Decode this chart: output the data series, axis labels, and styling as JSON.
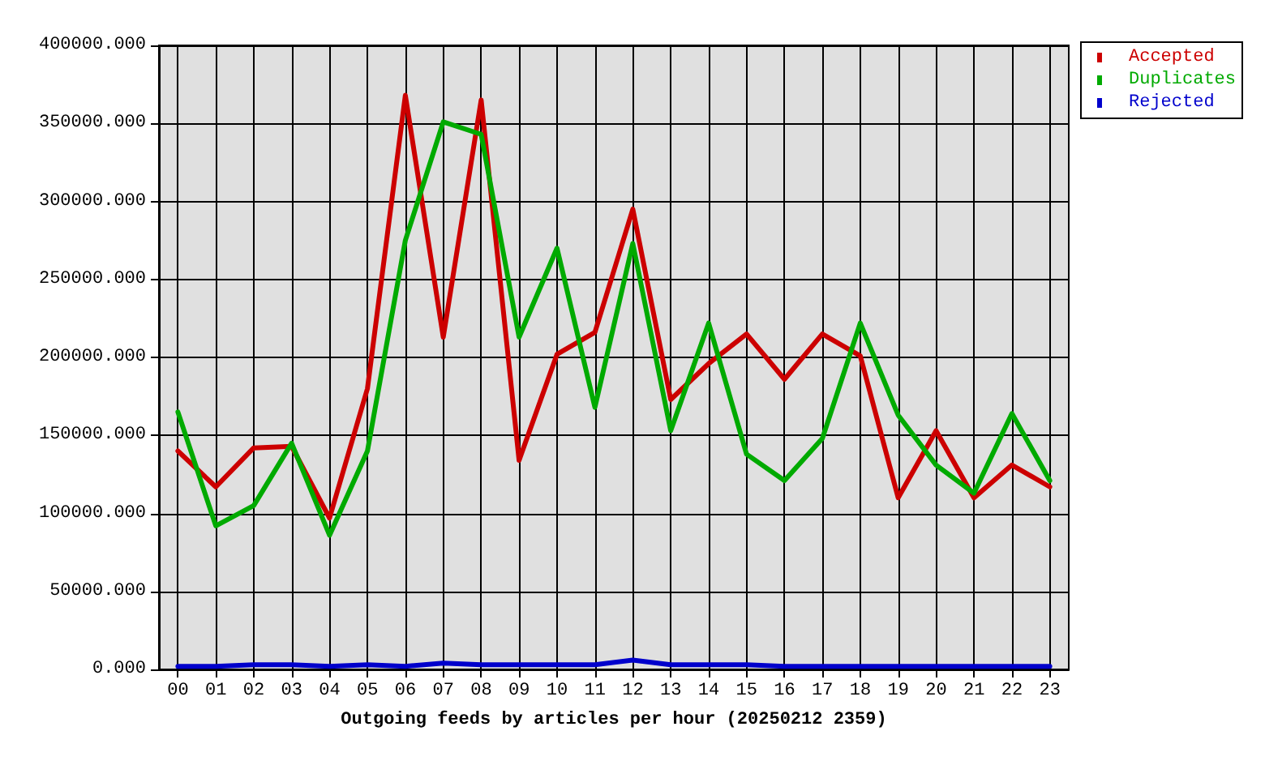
{
  "chart_data": {
    "type": "line",
    "xlabel": "Outgoing feeds by articles per hour (20250212 2359)",
    "categories": [
      "00",
      "01",
      "02",
      "03",
      "04",
      "05",
      "06",
      "07",
      "08",
      "09",
      "10",
      "11",
      "12",
      "13",
      "14",
      "15",
      "16",
      "17",
      "18",
      "19",
      "20",
      "21",
      "22",
      "23"
    ],
    "series": [
      {
        "name": "Accepted",
        "color": "#cc0000",
        "values": [
          140000,
          117000,
          142000,
          143000,
          97000,
          180000,
          368000,
          213000,
          365000,
          134000,
          202000,
          216000,
          295000,
          173000,
          196000,
          215000,
          186000,
          215000,
          201000,
          110000,
          153000,
          110000,
          131000,
          117000
        ]
      },
      {
        "name": "Duplicates",
        "color": "#00aa00",
        "values": [
          165000,
          92000,
          105000,
          145000,
          86000,
          140000,
          275000,
          351000,
          343000,
          213000,
          270000,
          168000,
          273000,
          153000,
          222000,
          138000,
          121000,
          148000,
          222000,
          163000,
          131000,
          113000,
          164000,
          121000
        ]
      },
      {
        "name": "Rejected",
        "color": "#0000cc",
        "values": [
          2000,
          2000,
          3000,
          3000,
          2000,
          3000,
          2000,
          4000,
          3000,
          3000,
          3000,
          3000,
          6000,
          3000,
          3000,
          3000,
          2000,
          2000,
          2000,
          2000,
          2000,
          2000,
          2000,
          2000
        ]
      }
    ],
    "ylim": [
      0,
      400000
    ],
    "yticks": [
      {
        "value": 0,
        "label": "0.000"
      },
      {
        "value": 50000,
        "label": "50000.000"
      },
      {
        "value": 100000,
        "label": "100000.000"
      },
      {
        "value": 150000,
        "label": "150000.000"
      },
      {
        "value": 200000,
        "label": "200000.000"
      },
      {
        "value": 250000,
        "label": "250000.000"
      },
      {
        "value": 300000,
        "label": "300000.000"
      },
      {
        "value": 350000,
        "label": "350000.000"
      },
      {
        "value": 400000,
        "label": "400000.000"
      }
    ],
    "grid": true,
    "legend": "top right",
    "marker": "none",
    "line_style": "solid"
  }
}
